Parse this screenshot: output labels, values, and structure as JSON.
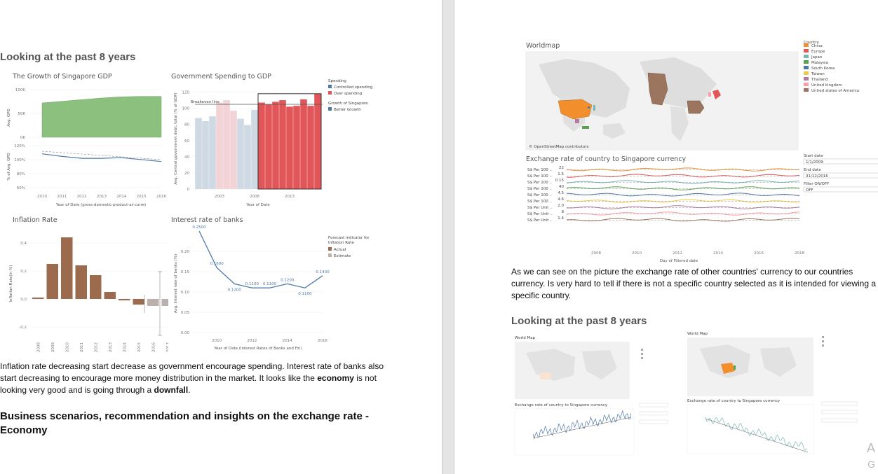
{
  "left": {
    "heading": "Looking at the past 8 years",
    "para1_parts": {
      "a": "Inflation rate decreasing start decrease as government encourage spending. Interest rate of banks also start decreasing to encourage more money distribution in the market. It looks like the ",
      "b": "economy",
      "c": " is not looking very good and is going through a ",
      "d": "downfall",
      "e": "."
    },
    "heading2": "Business scenarios, recommendation and insights on the exchange rate - Economy",
    "gdp": {
      "title": "The Growth of Singapore GDP",
      "y_top_ticks": [
        "100K",
        "50K",
        "0K"
      ],
      "y_top_label": "Avg. GPD",
      "y_bot_ticks": [
        "120%",
        "100%",
        "80%",
        "60%"
      ],
      "y_bot_label": "% of Avg. GPD",
      "x_ticks": [
        "2010",
        "2011",
        "2012",
        "2013",
        "2014",
        "2015",
        "2016"
      ],
      "xlabel": "Year of Date (gross-domestic-product-at-curre)"
    },
    "gov": {
      "title": "Government Spending to GDP",
      "y_ticks": [
        "120",
        "100",
        "80",
        "60",
        "40",
        "20",
        "0"
      ],
      "ylabel": "Avg. Central government debt, total (% of GDP)",
      "x_ticks": [
        "2003",
        "2008",
        "2013"
      ],
      "xlabel": "Year of Date",
      "ref_label": "Breakeven line",
      "legend_spending_title": "Spending",
      "legend_controlled": "Controlled spending",
      "legend_over": "Over spending",
      "legend_growth_title": "Growth of Singapore",
      "legend_better": "Better Growth"
    },
    "inflation": {
      "title": "Inflation Rate",
      "y_ticks": [
        "0.4",
        "0.2",
        "0.0",
        "-0.2"
      ],
      "ylabel": "Inflation Rate(in %)",
      "x_ticks": [
        "2008",
        "2009",
        "2010",
        "2011",
        "2012",
        "2013",
        "2014",
        "2015",
        "2016",
        "2017"
      ],
      "legend_title": "Forecast indicator for Inflation Rate",
      "legend_actual": "Actual",
      "legend_estimate": "Estimate"
    },
    "interest": {
      "title": "Interest rate of banks",
      "y_ticks": [
        "0.20",
        "0.15",
        "0.10",
        "0.05",
        "0.00"
      ],
      "ylabel": "Avg. Interest rate of banks (%)",
      "x_ticks": [
        "2010",
        "2012",
        "2014",
        "2016"
      ],
      "xlabel": "Year of Date (Interest Rates of Banks and Fin)"
    }
  },
  "right": {
    "map_title": "Worldmap",
    "map_credit": "© OpenStreetMap contributors",
    "country_legend_title": "Country",
    "countries": [
      {
        "name": "China",
        "color": "#f28e2b"
      },
      {
        "name": "Europe",
        "color": "#e15759"
      },
      {
        "name": "Japan",
        "color": "#76b7b2"
      },
      {
        "name": "Malaysia",
        "color": "#59a14f"
      },
      {
        "name": "South Korea",
        "color": "#4e79a7"
      },
      {
        "name": "Taiwan",
        "color": "#edc948"
      },
      {
        "name": "Thailand",
        "color": "#b07aa1"
      },
      {
        "name": "United kingdom",
        "color": "#ff9da7"
      },
      {
        "name": "United states of America",
        "color": "#9c755f"
      }
    ],
    "exchange_title": "Exchange rate of country to Singapore currency",
    "exchange_rows": [
      {
        "label": "S$ Per 100 ..",
        "val": "22"
      },
      {
        "label": "S$ Per 100 ..",
        "val": "1.5"
      },
      {
        "label": "S$ Per 100 ..",
        "val": "0.15"
      },
      {
        "label": "S$ Per 100 ..",
        "val": "40"
      },
      {
        "label": "S$ Per 100 ..",
        "val": "4.5"
      },
      {
        "label": "S$ Per 100 ..",
        "val": "4.6"
      },
      {
        "label": "S$ Per Unit ..",
        "val": "2.0"
      },
      {
        "label": "S$ Per Unit ..",
        "val": "8"
      },
      {
        "label": "S$ Per Unit ..",
        "val": "1.4"
      }
    ],
    "exchange_x_ticks": [
      "2008",
      "2010",
      "2012",
      "2014",
      "2016",
      "2018"
    ],
    "exchange_xlabel": "Day of Filtered date",
    "start_date_label": "Start date",
    "start_date_value": "1/1/2009",
    "end_date_label": "End date",
    "end_date_value": "31/12/2016",
    "filter_label": "Filter ON/OFF",
    "filter_value": "OFF",
    "para": "As we can see on the picture the exchange rate of other countries' currency to our countries currency. Is very hard to tell if there is not a specific country selected as it is intended for viewing a specific country.",
    "heading": "Looking at the past 8 years",
    "thumb_map_title": "World Map",
    "thumb_exchange_title": "Exchange rate of country to Singapore currency",
    "corner_glyphs": [
      "A",
      "G"
    ]
  },
  "chart_data": [
    {
      "type": "area",
      "title": "The Growth of Singapore GDP",
      "x": [
        2010,
        2011,
        2012,
        2013,
        2014,
        2015,
        2016
      ],
      "series": [
        {
          "name": "Avg. GPD",
          "values": [
            84000,
            88000,
            92000,
            96000,
            99000,
            100000,
            100000
          ]
        }
      ],
      "ylim": [
        0,
        120000
      ]
    },
    {
      "type": "line",
      "x": [
        2010,
        2011,
        2012,
        2013,
        2014,
        2015,
        2016
      ],
      "series": [
        {
          "name": "% of Avg. GPD",
          "values": [
            110,
            106,
            103,
            103,
            104,
            101,
            98
          ]
        }
      ],
      "ylim": [
        55,
        125
      ]
    },
    {
      "type": "bar",
      "title": "Government Spending to GDP",
      "x": [
        2000,
        2001,
        2002,
        2003,
        2004,
        2005,
        2006,
        2007,
        2008,
        2009,
        2010,
        2011,
        2012,
        2013,
        2014,
        2015,
        2016,
        2017
      ],
      "values": [
        88,
        84,
        90,
        107,
        110,
        97,
        87,
        79,
        98,
        107,
        105,
        108,
        110,
        102,
        103,
        111,
        103,
        118
      ],
      "colors": [
        "#cfd9e3",
        "#cfd9e3",
        "#cfd9e3",
        "#f2d3d6",
        "#f2d3d6",
        "#f2d3d6",
        "#cfd9e3",
        "#cfd9e3",
        "#cfd9e3",
        "#e15759",
        "#e15759",
        "#e15759",
        "#e15759",
        "#e15759",
        "#e15759",
        "#e15759",
        "#e15759",
        "#e15759"
      ],
      "reference": 100,
      "ylim": [
        0,
        130
      ]
    },
    {
      "type": "bar",
      "title": "Inflation Rate",
      "categories": [
        "2008",
        "2009",
        "2010",
        "2011",
        "2012",
        "2013",
        "2014",
        "2015",
        "2016",
        "2017"
      ],
      "values": [
        0.01,
        0.25,
        0.44,
        0.24,
        0.17,
        0.05,
        -0.01,
        -0.04,
        -0.05,
        -0.05
      ],
      "estimate": [
        false,
        false,
        false,
        false,
        false,
        false,
        false,
        false,
        true,
        true
      ],
      "ylim": [
        -0.25,
        0.5
      ]
    },
    {
      "type": "line",
      "title": "Interest rate of banks",
      "x": [
        2009,
        2010,
        2011,
        2012,
        2013,
        2014,
        2015,
        2016
      ],
      "values": [
        0.25,
        0.16,
        0.12,
        0.11,
        0.11,
        0.12,
        0.11,
        0.14
      ],
      "point_labels": [
        "0.2500",
        "0.1600",
        "0.1200",
        "0.1100",
        "0.1100",
        "0.1200",
        "0.1100",
        "0.1400"
      ],
      "ylim": [
        0,
        0.25
      ]
    }
  ]
}
